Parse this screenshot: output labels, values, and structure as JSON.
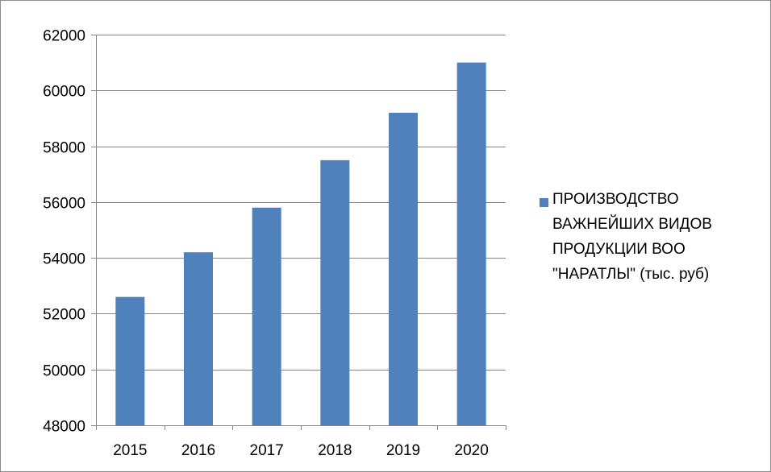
{
  "chart_data": {
    "type": "bar",
    "categories": [
      "2015",
      "2016",
      "2017",
      "2018",
      "2019",
      "2020"
    ],
    "series": [
      {
        "name": "ПРОИЗВОДСТВО\nВАЖНЕЙШИХ ВИДОВ\nПРОДУКЦИИ  ВОО\n\"НАРАТЛЫ\" (тыс. руб)",
        "values": [
          52600,
          54200,
          55800,
          57500,
          59200,
          61000
        ]
      }
    ],
    "ylim": [
      48000,
      62000
    ],
    "yticks": [
      48000,
      50000,
      52000,
      54000,
      56000,
      58000,
      60000,
      62000
    ],
    "grid": true,
    "legend_position": "right",
    "bar_color": "#4f81bd",
    "grid_color": "#868686"
  }
}
